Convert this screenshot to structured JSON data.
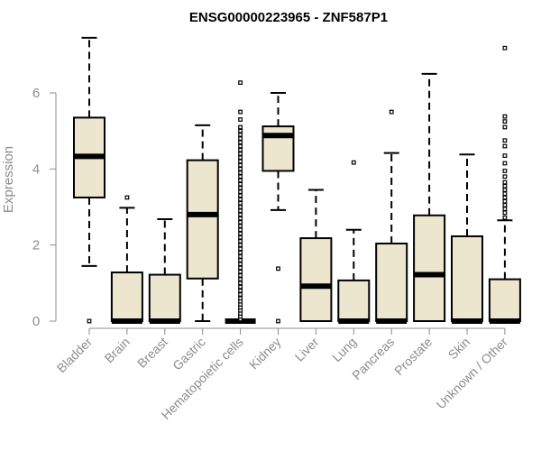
{
  "chart_data": {
    "type": "box",
    "title": "ENSG00000223965 - ZNF587P1",
    "xlabel": "",
    "ylabel": "Expression",
    "ylim": [
      0,
      7.4
    ],
    "yticks": [
      "0",
      "2",
      "4",
      "6"
    ],
    "box_fill": "#ede6ce",
    "categories": [
      "Bladder",
      "Brain",
      "Breast",
      "Gastric",
      "Hematopoietic cells",
      "Kidney",
      "Liver",
      "Lung",
      "Pancreas",
      "Prostate",
      "Skin",
      "Unknown / Other"
    ],
    "boxes": [
      {
        "category": "Bladder",
        "whisker_low": 1.45,
        "q1": 3.25,
        "median": 4.33,
        "q3": 5.35,
        "whisker_high": 7.45,
        "outliers": [
          0.0
        ]
      },
      {
        "category": "Brain",
        "whisker_low": 0.0,
        "q1": 0.0,
        "median": 0.0,
        "q3": 1.28,
        "whisker_high": 2.98,
        "outliers": [
          3.25
        ]
      },
      {
        "category": "Breast",
        "whisker_low": 0.0,
        "q1": 0.0,
        "median": 0.0,
        "q3": 1.22,
        "whisker_high": 2.68,
        "outliers": []
      },
      {
        "category": "Gastric",
        "whisker_low": 0.0,
        "q1": 1.12,
        "median": 2.8,
        "q3": 4.23,
        "whisker_high": 5.15,
        "outliers": []
      },
      {
        "category": "Hematopoietic cells",
        "whisker_low": 0.0,
        "q1": 0.0,
        "median": 0.0,
        "q3": 0.0,
        "whisker_high": 0.0,
        "outliers": [
          0.05,
          0.12,
          0.2,
          0.28,
          0.36,
          0.44,
          0.52,
          0.6,
          0.7,
          0.8,
          0.9,
          1.0,
          1.1,
          1.2,
          1.3,
          1.4,
          1.5,
          1.6,
          1.7,
          1.8,
          1.9,
          2.0,
          2.1,
          2.2,
          2.3,
          2.4,
          2.5,
          2.6,
          2.7,
          2.8,
          2.9,
          3.0,
          3.1,
          3.2,
          3.3,
          3.4,
          3.5,
          3.6,
          3.7,
          3.8,
          3.9,
          4.0,
          4.1,
          4.2,
          4.3,
          4.4,
          4.5,
          4.6,
          4.7,
          4.8,
          4.9,
          5.0,
          5.1,
          5.3,
          5.5,
          6.27
        ]
      },
      {
        "category": "Kidney",
        "whisker_low": 2.92,
        "q1": 3.95,
        "median": 4.88,
        "q3": 5.12,
        "whisker_high": 6.0,
        "outliers": [
          0.0,
          1.38
        ]
      },
      {
        "category": "Liver",
        "whisker_low": 0.0,
        "q1": 0.0,
        "median": 0.92,
        "q3": 2.18,
        "whisker_high": 3.45,
        "outliers": []
      },
      {
        "category": "Lung",
        "whisker_low": 0.0,
        "q1": 0.0,
        "median": 0.0,
        "q3": 1.07,
        "whisker_high": 2.4,
        "outliers": [
          4.17
        ]
      },
      {
        "category": "Pancreas",
        "whisker_low": 0.0,
        "q1": 0.0,
        "median": 0.0,
        "q3": 2.04,
        "whisker_high": 4.42,
        "outliers": [
          5.5
        ]
      },
      {
        "category": "Prostate",
        "whisker_low": 0.0,
        "q1": 0.0,
        "median": 1.22,
        "q3": 2.78,
        "whisker_high": 6.5,
        "outliers": []
      },
      {
        "category": "Skin",
        "whisker_low": 0.0,
        "q1": 0.0,
        "median": 0.0,
        "q3": 2.23,
        "whisker_high": 4.38,
        "outliers": []
      },
      {
        "category": "Unknown / Other",
        "whisker_low": 0.0,
        "q1": 0.0,
        "median": 0.0,
        "q3": 1.1,
        "whisker_high": 2.65,
        "outliers": [
          2.72,
          2.85,
          2.95,
          3.05,
          3.15,
          3.25,
          3.35,
          3.45,
          3.55,
          3.65,
          3.8,
          3.95,
          4.15,
          4.35,
          4.6,
          4.75,
          5.1,
          5.25,
          5.38,
          7.18
        ]
      }
    ]
  }
}
